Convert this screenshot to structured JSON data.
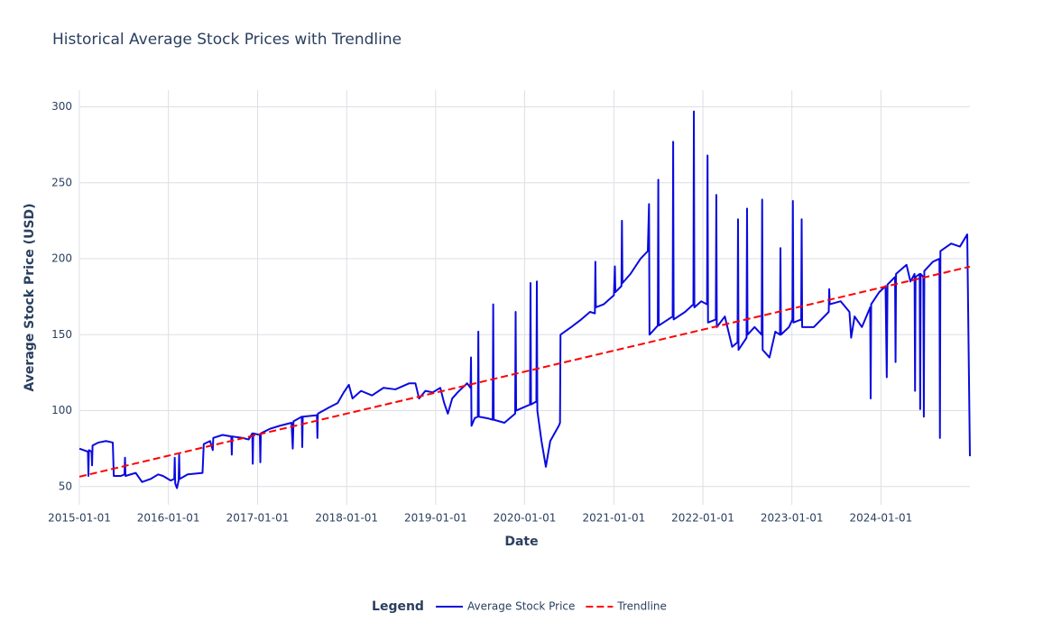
{
  "chart_data": {
    "type": "line",
    "title": "Historical Average Stock Prices with Trendline",
    "x_label": "Date",
    "y_label": "Average Stock Price (USD)",
    "legend_title": "Legend",
    "legend_position": "bottom",
    "grid": true,
    "xlim": [
      "2015-01-01",
      "2024-12-31"
    ],
    "xticks": [
      "2015-01-01",
      "2016-01-01",
      "2017-01-01",
      "2018-01-01",
      "2019-01-01",
      "2020-01-01",
      "2021-01-01",
      "2022-01-01",
      "2023-01-01",
      "2024-01-01"
    ],
    "ylim": [
      38,
      311
    ],
    "yticks": [
      50,
      100,
      150,
      200,
      250,
      300
    ],
    "series": [
      {
        "name": "Average Stock Price",
        "color": "#0a0ae0",
        "dash": false,
        "x": [
          "2015-01-01",
          "2015-02-05",
          "2015-02-07",
          "2015-02-09",
          "2015-02-20",
          "2015-02-22",
          "2015-02-24",
          "2015-03-20",
          "2015-04-20",
          "2015-05-18",
          "2015-05-22",
          "2015-06-20",
          "2015-07-05",
          "2015-07-07",
          "2015-07-09",
          "2015-08-20",
          "2015-09-15",
          "2015-10-20",
          "2015-11-20",
          "2015-12-10",
          "2016-01-10",
          "2016-01-25",
          "2016-01-27",
          "2016-01-29",
          "2016-02-05",
          "2016-02-12",
          "2016-02-14",
          "2016-02-16",
          "2016-03-20",
          "2016-05-20",
          "2016-05-25",
          "2016-06-20",
          "2016-07-01",
          "2016-07-03",
          "2016-08-10",
          "2016-09-15",
          "2016-09-17",
          "2016-09-19",
          "2016-11-01",
          "2016-11-25",
          "2016-12-10",
          "2016-12-12",
          "2016-12-14",
          "2017-01-10",
          "2017-01-12",
          "2017-01-14",
          "2017-02-20",
          "2017-04-01",
          "2017-05-20",
          "2017-05-25",
          "2017-05-28",
          "2017-07-01",
          "2017-07-03",
          "2017-07-05",
          "2017-09-01",
          "2017-09-03",
          "2017-09-05",
          "2017-10-20",
          "2017-11-25",
          "2017-12-20",
          "2018-01-10",
          "2018-01-25",
          "2018-03-01",
          "2018-04-15",
          "2018-06-01",
          "2018-07-20",
          "2018-09-15",
          "2018-10-10",
          "2018-10-25",
          "2018-11-20",
          "2018-12-20",
          "2019-01-20",
          "2019-02-05",
          "2019-02-20",
          "2019-03-10",
          "2019-04-01",
          "2019-05-10",
          "2019-05-24",
          "2019-05-26",
          "2019-05-28",
          "2019-06-10",
          "2019-06-23",
          "2019-06-25",
          "2019-06-27",
          "2019-08-01",
          "2019-08-23",
          "2019-08-25",
          "2019-08-27",
          "2019-10-10",
          "2019-11-23",
          "2019-11-25",
          "2019-11-27",
          "2019-12-25",
          "2020-01-23",
          "2020-01-25",
          "2020-01-27",
          "2020-02-18",
          "2020-02-20",
          "2020-02-22",
          "2020-03-10",
          "2020-03-28",
          "2020-04-15",
          "2020-05-20",
          "2020-05-25",
          "2020-05-27",
          "2020-07-10",
          "2020-08-20",
          "2020-09-25",
          "2020-10-15",
          "2020-10-17",
          "2020-10-19",
          "2020-11-20",
          "2021-01-01",
          "2021-01-05",
          "2021-01-07",
          "2021-02-01",
          "2021-02-03",
          "2021-02-05",
          "2021-03-10",
          "2021-04-20",
          "2021-05-20",
          "2021-05-25",
          "2021-05-27",
          "2021-06-30",
          "2021-07-02",
          "2021-07-04",
          "2021-08-30",
          "2021-09-01",
          "2021-09-03",
          "2021-10-20",
          "2021-11-23",
          "2021-11-25",
          "2021-11-27",
          "2021-12-25",
          "2022-01-18",
          "2022-01-20",
          "2022-01-22",
          "2022-02-23",
          "2022-02-25",
          "2022-02-27",
          "2022-04-01",
          "2022-05-01",
          "2022-05-23",
          "2022-05-25",
          "2022-05-27",
          "2022-06-29",
          "2022-07-01",
          "2022-07-03",
          "2022-08-01",
          "2022-08-30",
          "2022-09-01",
          "2022-09-03",
          "2022-10-01",
          "2022-10-25",
          "2022-11-13",
          "2022-11-15",
          "2022-11-17",
          "2022-12-20",
          "2023-01-03",
          "2023-01-05",
          "2023-01-07",
          "2023-02-08",
          "2023-02-10",
          "2023-02-12",
          "2023-04-01",
          "2023-06-01",
          "2023-06-03",
          "2023-06-05",
          "2023-07-20",
          "2023-08-25",
          "2023-09-01",
          "2023-09-15",
          "2023-10-15",
          "2023-11-18",
          "2023-11-20",
          "2023-11-22",
          "2023-12-25",
          "2024-01-20",
          "2024-01-25",
          "2024-01-28",
          "2024-02-28",
          "2024-03-01",
          "2024-03-03",
          "2024-04-15",
          "2024-05-01",
          "2024-05-18",
          "2024-05-20",
          "2024-05-22",
          "2024-06-08",
          "2024-06-10",
          "2024-06-12",
          "2024-06-23",
          "2024-06-25",
          "2024-06-27",
          "2024-08-01",
          "2024-08-28",
          "2024-08-30",
          "2024-09-01",
          "2024-10-15",
          "2024-11-20",
          "2024-12-20",
          "2024-12-31"
        ],
        "values": [
          75,
          73,
          57,
          74,
          73,
          64,
          77,
          79,
          80,
          79,
          57,
          57,
          58,
          69,
          57,
          59,
          53,
          55,
          58,
          57,
          54,
          55,
          69,
          52,
          49,
          54,
          71,
          55,
          58,
          59,
          78,
          80,
          74,
          82,
          84,
          83,
          71,
          83,
          82,
          81,
          85,
          65,
          85,
          84,
          66,
          85,
          88,
          90,
          92,
          75,
          93,
          96,
          76,
          96,
          97,
          82,
          98,
          102,
          105,
          112,
          117,
          108,
          113,
          110,
          115,
          114,
          118,
          118,
          108,
          113,
          112,
          115,
          105,
          98,
          108,
          112,
          118,
          115,
          135,
          90,
          95,
          96,
          152,
          96,
          95,
          94,
          170,
          94,
          92,
          98,
          165,
          100,
          102,
          104,
          184,
          104,
          106,
          185,
          100,
          80,
          63,
          80,
          90,
          92,
          150,
          155,
          160,
          165,
          164,
          198,
          168,
          170,
          176,
          195,
          178,
          182,
          225,
          184,
          190,
          200,
          205,
          236,
          150,
          156,
          252,
          156,
          162,
          277,
          160,
          165,
          170,
          297,
          168,
          172,
          170,
          268,
          158,
          160,
          242,
          155,
          162,
          142,
          145,
          226,
          140,
          148,
          233,
          150,
          155,
          150,
          239,
          140,
          135,
          152,
          150,
          207,
          150,
          155,
          160,
          238,
          158,
          160,
          226,
          155,
          155,
          165,
          180,
          170,
          172,
          165,
          148,
          162,
          155,
          168,
          108,
          170,
          178,
          182,
          122,
          183,
          188,
          132,
          190,
          196,
          185,
          190,
          113,
          188,
          190,
          101,
          190,
          188,
          96,
          192,
          198,
          200,
          82,
          205,
          210,
          208,
          216,
          70
        ]
      },
      {
        "name": "Trendline",
        "color": "#ff0000",
        "dash": true,
        "x": [
          "2015-01-01",
          "2024-12-31"
        ],
        "values": [
          56.5,
          194.8
        ]
      }
    ]
  }
}
